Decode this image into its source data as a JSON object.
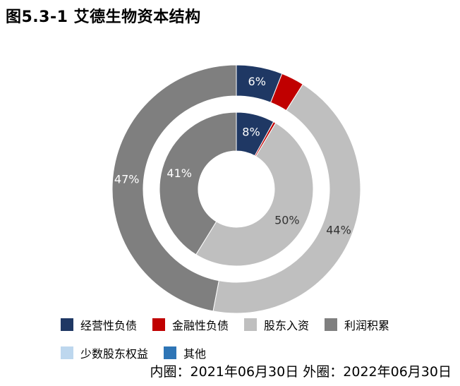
{
  "chart_data": {
    "type": "pie",
    "title": "图5.3-1 艾德生物资本结构",
    "note": "内圈：2021年06月30日 外圈：2022年06月30日",
    "legend": [
      {
        "label": "经营性负债",
        "color": "#1f3864"
      },
      {
        "label": "金融性负债",
        "color": "#c00000"
      },
      {
        "label": "股东入资",
        "color": "#bfbfbf"
      },
      {
        "label": "利润积累",
        "color": "#7f7f7f"
      },
      {
        "label": "少数股东权益",
        "color": "#bdd7ee"
      },
      {
        "label": "其他",
        "color": "#2e75b6"
      }
    ],
    "rings": [
      {
        "name": "外圈",
        "values": [
          6,
          3,
          44,
          47,
          0,
          0
        ],
        "labels": [
          "6%",
          "",
          "44%",
          "47%",
          "",
          ""
        ]
      },
      {
        "name": "内圈",
        "values": [
          8,
          0.5,
          50,
          41,
          0,
          0
        ],
        "labels": [
          "8%",
          "",
          "50%",
          "41%",
          "",
          ""
        ]
      }
    ]
  }
}
